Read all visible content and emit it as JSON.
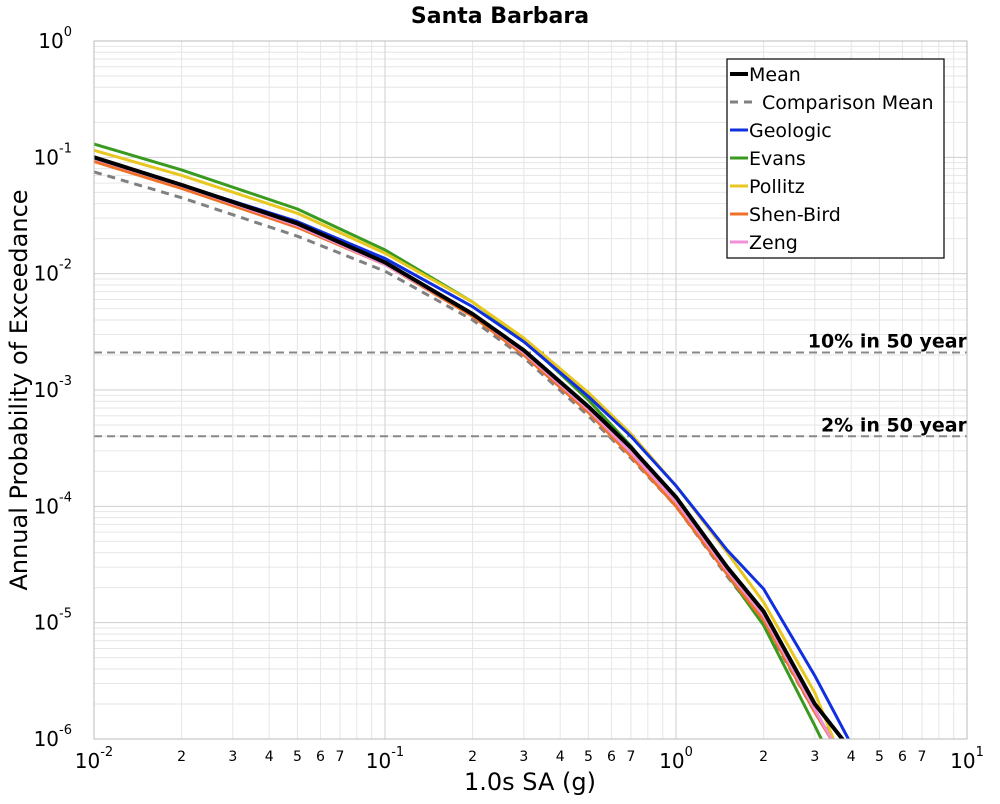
{
  "chart_data": {
    "type": "line",
    "title": "Santa Barbara",
    "xlabel": "1.0s SA (g)",
    "ylabel": "Annual Probability of Exceedance",
    "xscale": "log",
    "yscale": "log",
    "xlim": [
      0.01,
      10
    ],
    "ylim": [
      1e-06,
      1
    ],
    "grid": true,
    "legend_position": "top-right",
    "x_major_ticks": [
      {
        "value": 0.01,
        "base": "10",
        "exp": "-2"
      },
      {
        "value": 0.1,
        "base": "10",
        "exp": "-1"
      },
      {
        "value": 1,
        "base": "10",
        "exp": "0"
      },
      {
        "value": 10,
        "base": "10",
        "exp": "1"
      }
    ],
    "x_minor_ticks": [
      {
        "value": 0.02,
        "label": "2"
      },
      {
        "value": 0.03,
        "label": "3"
      },
      {
        "value": 0.04,
        "label": "4"
      },
      {
        "value": 0.05,
        "label": "5"
      },
      {
        "value": 0.06,
        "label": "6"
      },
      {
        "value": 0.07,
        "label": "7"
      },
      {
        "value": 0.2,
        "label": "2"
      },
      {
        "value": 0.3,
        "label": "3"
      },
      {
        "value": 0.4,
        "label": "4"
      },
      {
        "value": 0.5,
        "label": "5"
      },
      {
        "value": 0.6,
        "label": "6"
      },
      {
        "value": 0.7,
        "label": "7"
      },
      {
        "value": 2,
        "label": "2"
      },
      {
        "value": 3,
        "label": "3"
      },
      {
        "value": 4,
        "label": "4"
      },
      {
        "value": 5,
        "label": "5"
      },
      {
        "value": 6,
        "label": "6"
      },
      {
        "value": 7,
        "label": "7"
      }
    ],
    "y_major_ticks": [
      {
        "value": 1,
        "base": "10",
        "exp": "0"
      },
      {
        "value": 0.1,
        "base": "10",
        "exp": "-1"
      },
      {
        "value": 0.01,
        "base": "10",
        "exp": "-2"
      },
      {
        "value": 0.001,
        "base": "10",
        "exp": "-3"
      },
      {
        "value": 0.0001,
        "base": "10",
        "exp": "-4"
      },
      {
        "value": 1e-05,
        "base": "10",
        "exp": "-5"
      },
      {
        "value": 1e-06,
        "base": "10",
        "exp": "-6"
      }
    ],
    "reference_lines": [
      {
        "label": "10% in 50 year",
        "y": 0.0021,
        "color": "#888888"
      },
      {
        "label": "2% in 50 year",
        "y": 0.0004,
        "color": "#888888"
      }
    ],
    "series": [
      {
        "name": "Mean",
        "color": "#000000",
        "width": 4,
        "dash": "",
        "x": [
          0.01,
          0.02,
          0.05,
          0.1,
          0.2,
          0.3,
          0.5,
          0.7,
          1.0,
          1.5,
          2.0,
          3.0,
          4.0
        ],
        "y": [
          0.1,
          0.058,
          0.027,
          0.0125,
          0.0045,
          0.0022,
          0.00072,
          0.00032,
          0.00012,
          3e-05,
          1.25e-05,
          2e-06,
          8e-07
        ]
      },
      {
        "name": "Comparison Mean",
        "color": "#808080",
        "width": 3,
        "dash": "8,6",
        "x": [
          0.01,
          0.02,
          0.05,
          0.1,
          0.2,
          0.3,
          0.5,
          0.7,
          1.0,
          1.5,
          2.0,
          3.0,
          3.7
        ],
        "y": [
          0.075,
          0.045,
          0.021,
          0.0105,
          0.004,
          0.0019,
          0.0006,
          0.00026,
          0.0001,
          2.5e-05,
          1e-05,
          1.7e-06,
          8e-07
        ]
      },
      {
        "name": "Geologic",
        "color": "#1030e0",
        "width": 3,
        "dash": "",
        "x": [
          0.01,
          0.02,
          0.05,
          0.1,
          0.2,
          0.3,
          0.5,
          0.7,
          1.0,
          1.5,
          2.0,
          3.0,
          4.0
        ],
        "y": [
          0.1,
          0.058,
          0.028,
          0.0135,
          0.0052,
          0.0026,
          0.00088,
          0.0004,
          0.00015,
          4.2e-05,
          1.95e-05,
          3.5e-06,
          9e-07
        ]
      },
      {
        "name": "Evans",
        "color": "#3a9a20",
        "width": 3,
        "dash": "",
        "x": [
          0.01,
          0.02,
          0.05,
          0.1,
          0.2,
          0.3,
          0.5,
          0.7,
          1.0,
          1.5,
          2.0,
          3.0,
          3.3
        ],
        "y": [
          0.13,
          0.078,
          0.036,
          0.016,
          0.0057,
          0.0027,
          0.00082,
          0.00033,
          0.00011,
          2.6e-05,
          9.5e-06,
          1.3e-06,
          8e-07
        ]
      },
      {
        "name": "Pollitz",
        "color": "#e8c820",
        "width": 3,
        "dash": "",
        "x": [
          0.01,
          0.02,
          0.05,
          0.1,
          0.2,
          0.3,
          0.5,
          0.7,
          1.0,
          1.5,
          2.0,
          3.0,
          3.6
        ],
        "y": [
          0.115,
          0.07,
          0.033,
          0.015,
          0.0057,
          0.0028,
          0.00095,
          0.00042,
          0.00015,
          4e-05,
          1.5e-05,
          2.5e-06,
          8e-07
        ]
      },
      {
        "name": "Shen-Bird",
        "color": "#f07028",
        "width": 3,
        "dash": "",
        "x": [
          0.01,
          0.02,
          0.05,
          0.1,
          0.2,
          0.3,
          0.5,
          0.7,
          1.0,
          1.5,
          2.0,
          3.0,
          3.6
        ],
        "y": [
          0.092,
          0.054,
          0.025,
          0.012,
          0.0043,
          0.002,
          0.00064,
          0.00027,
          0.0001,
          2.6e-05,
          1.05e-05,
          1.7e-06,
          8e-07
        ]
      },
      {
        "name": "Zeng",
        "color": "#f090d8",
        "width": 3,
        "dash": "",
        "x": [
          0.01,
          0.02,
          0.05,
          0.1,
          0.2,
          0.3,
          0.5,
          0.7,
          1.0,
          1.5,
          2.0,
          3.0,
          3.6
        ],
        "y": [
          0.098,
          0.057,
          0.026,
          0.012,
          0.0045,
          0.0021,
          0.00068,
          0.00029,
          0.00011,
          2.8e-05,
          1.15e-05,
          1.8e-06,
          8e-07
        ]
      }
    ]
  }
}
